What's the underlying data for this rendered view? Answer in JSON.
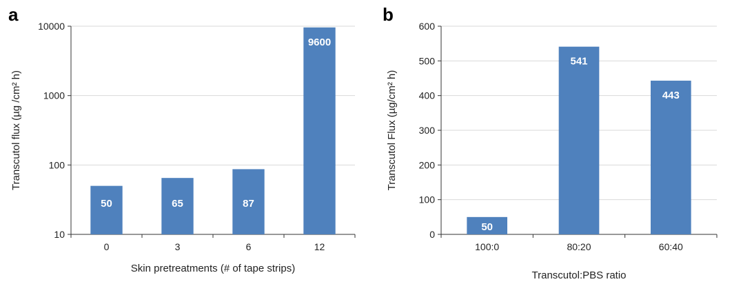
{
  "chart_data": [
    {
      "panel": "a",
      "type": "bar",
      "scale": "log",
      "categories": [
        "0",
        "3",
        "6",
        "12"
      ],
      "values": [
        50,
        65,
        87,
        9600
      ],
      "data_labels": [
        "50",
        "65",
        "87",
        "9600"
      ],
      "xlabel": "Skin pretreatments (# of tape strips)",
      "ylabel": "Transcutol flux (µg /cm² h)",
      "ylim": [
        10,
        10000
      ],
      "yticks": [
        10,
        100,
        1000,
        10000
      ],
      "ytick_labels": [
        "10",
        "100",
        "1000",
        "10000"
      ],
      "grid": true,
      "color": "#4f81bd"
    },
    {
      "panel": "b",
      "type": "bar",
      "scale": "linear",
      "categories": [
        "100:0",
        "80:20",
        "60:40"
      ],
      "values": [
        50,
        541,
        443
      ],
      "data_labels": [
        "50",
        "541",
        "443"
      ],
      "xlabel": "Transcutol:PBS ratio",
      "ylabel": "Transcutol Flux (µg/cm² h)",
      "ylim": [
        0,
        600
      ],
      "yticks": [
        0,
        100,
        200,
        300,
        400,
        500,
        600
      ],
      "ytick_labels": [
        "0",
        "100",
        "200",
        "300",
        "400",
        "500",
        "600"
      ],
      "grid": true,
      "color": "#4f81bd"
    }
  ]
}
